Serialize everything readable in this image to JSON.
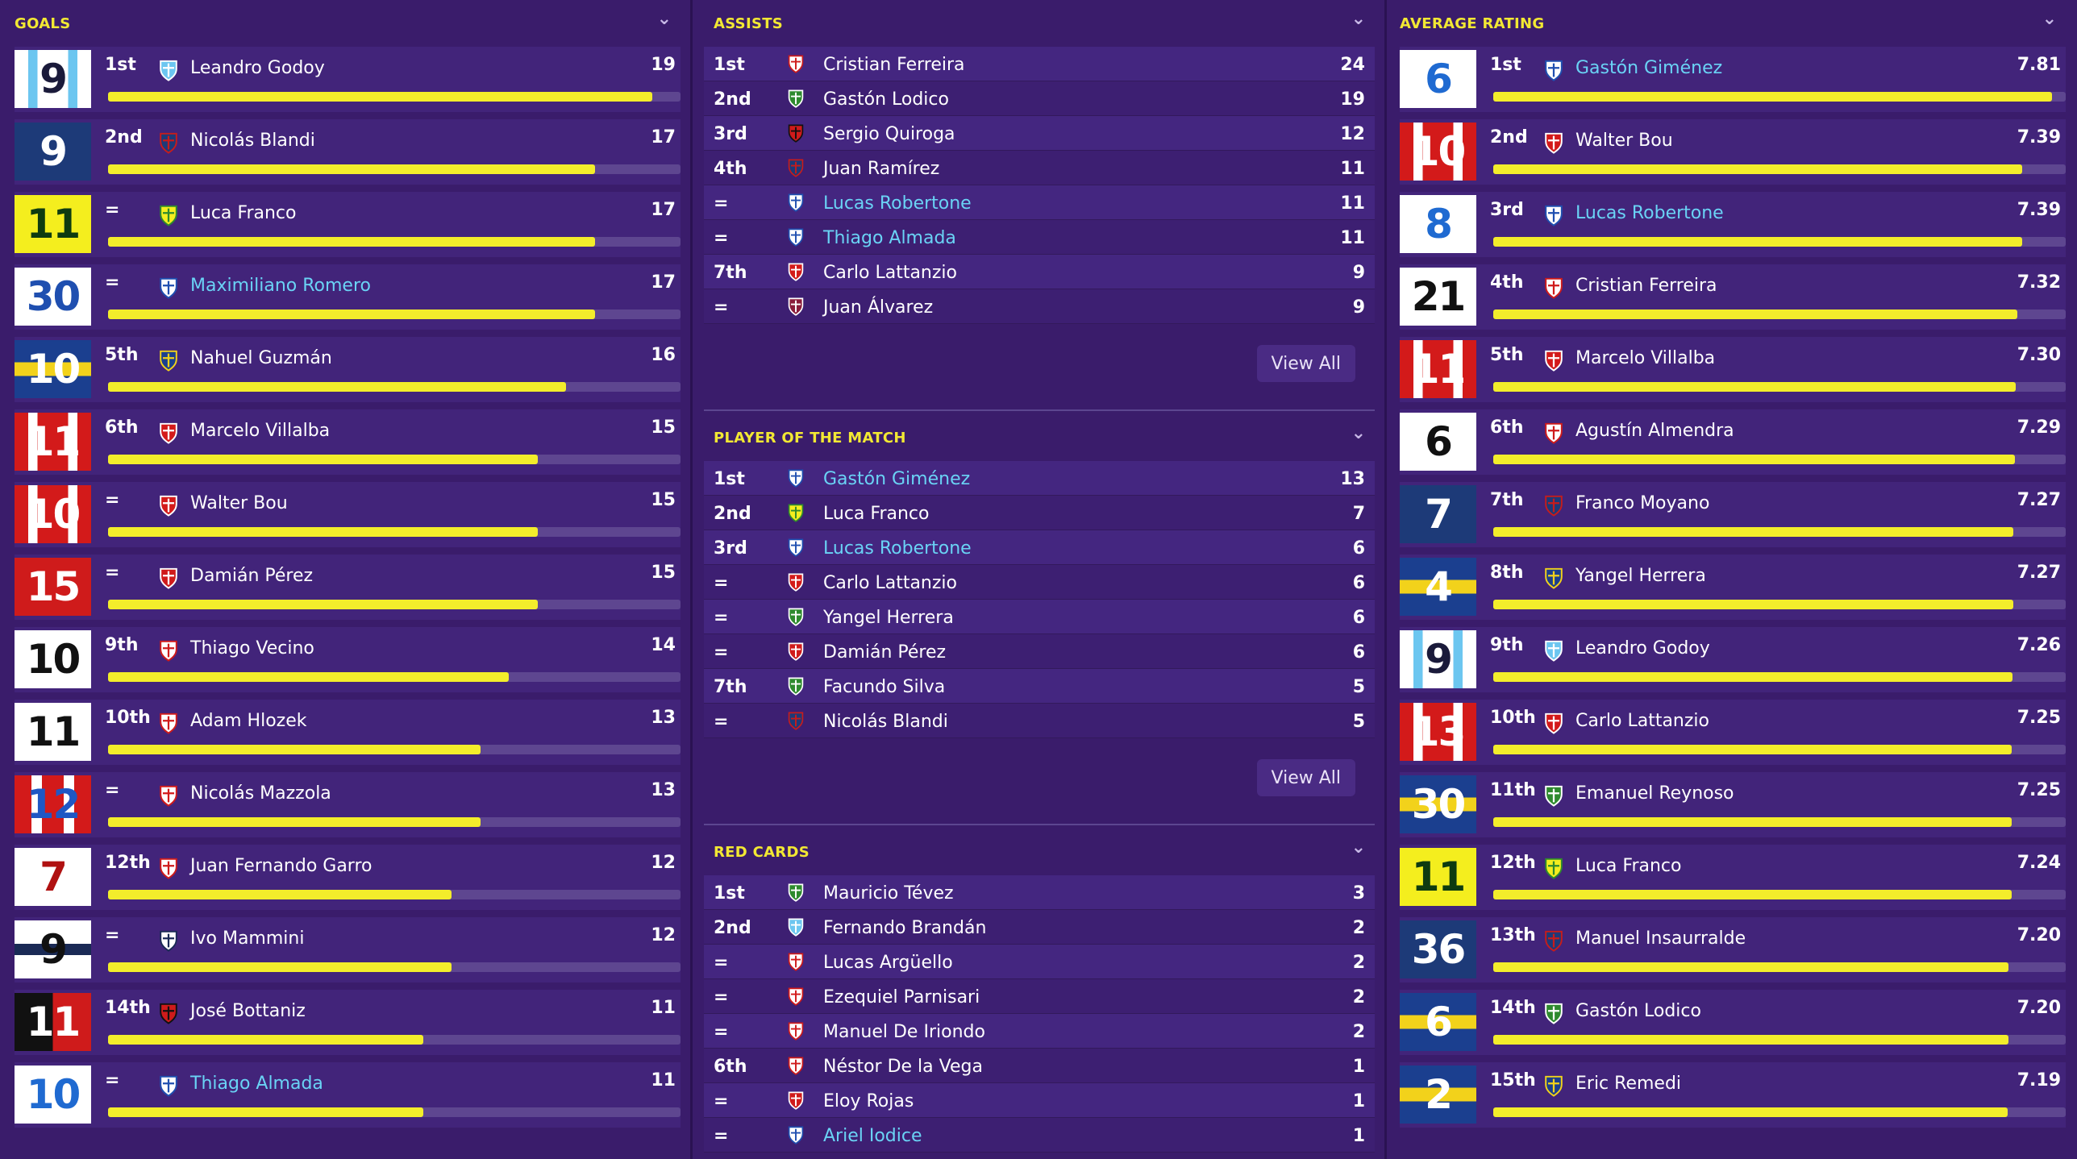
{
  "colors": {
    "background": "#3a1c6b",
    "header_yellow": "#f2e833",
    "bar_fill": "#f3ed2b",
    "bar_track": "#5e4690",
    "link_blue": "#6ad3f5"
  },
  "goals": {
    "title": "GOALS",
    "max": 20,
    "rows": [
      {
        "kit": "9",
        "kit_style": "racing",
        "rank": "1st",
        "crest": "racing-crest",
        "name": "Leandro Godoy",
        "value": "19",
        "num": 19,
        "link": false
      },
      {
        "kit": "9",
        "kit_style": "sanlorenzo",
        "rank": "2nd",
        "crest": "sanlorenzo-crest",
        "name": "Nicolás Blandi",
        "value": "17",
        "num": 17,
        "link": false
      },
      {
        "kit": "11",
        "kit_style": "defensa",
        "rank": "=",
        "crest": "defensa-crest",
        "name": "Luca Franco",
        "value": "17",
        "num": 17,
        "link": false
      },
      {
        "kit": "30",
        "kit_style": "velez",
        "rank": "=",
        "crest": "velez-crest",
        "name": "Maximiliano Romero",
        "value": "17",
        "num": 17,
        "link": true
      },
      {
        "kit": "10",
        "kit_style": "boca",
        "rank": "5th",
        "crest": "boca-crest",
        "name": "Nahuel Guzmán",
        "value": "16",
        "num": 16,
        "link": false
      },
      {
        "kit": "11",
        "kit_style": "union",
        "rank": "6th",
        "crest": "union-crest",
        "name": "Marcelo Villalba",
        "value": "15",
        "num": 15,
        "link": false
      },
      {
        "kit": "10",
        "kit_style": "union",
        "rank": "=",
        "crest": "union-crest",
        "name": "Walter Bou",
        "value": "15",
        "num": 15,
        "link": false
      },
      {
        "kit": "15",
        "kit_style": "independiente",
        "rank": "=",
        "crest": "independiente-crest",
        "name": "Damián Pérez",
        "value": "15",
        "num": 15,
        "link": false
      },
      {
        "kit": "10",
        "kit_style": "river",
        "rank": "9th",
        "crest": "river-crest",
        "name": "Thiago Vecino",
        "value": "14",
        "num": 14,
        "link": false
      },
      {
        "kit": "11",
        "kit_style": "white",
        "rank": "10th",
        "crest": "river-crest",
        "name": "Adam Hlozek",
        "value": "13",
        "num": 13,
        "link": false
      },
      {
        "kit": "12",
        "kit_style": "unionstripe",
        "rank": "=",
        "crest": "unionsf-crest",
        "name": "Nicolás Mazzola",
        "value": "13",
        "num": 13,
        "link": false
      },
      {
        "kit": "7",
        "kit_style": "huracan",
        "rank": "12th",
        "crest": "huracan-crest",
        "name": "Juan Fernando Garro",
        "value": "12",
        "num": 12,
        "link": false
      },
      {
        "kit": "9",
        "kit_style": "gimnasia",
        "rank": "=",
        "crest": "gimnasia-crest",
        "name": "Ivo Mammini",
        "value": "12",
        "num": 12,
        "link": false
      },
      {
        "kit": "11",
        "kit_style": "newells",
        "rank": "14th",
        "crest": "newells-crest",
        "name": "José Bottaniz",
        "value": "11",
        "num": 11,
        "link": false
      },
      {
        "kit": "10",
        "kit_style": "velezw",
        "rank": "=",
        "crest": "velez-crest",
        "name": "Thiago Almada",
        "value": "11",
        "num": 11,
        "link": true
      }
    ]
  },
  "assists": {
    "title": "ASSISTS",
    "view_all": "View All",
    "rows": [
      {
        "rank": "1st",
        "crest": "river-crest",
        "name": "Cristian Ferreira",
        "value": "24",
        "link": false
      },
      {
        "rank": "2nd",
        "crest": "banfield-crest",
        "name": "Gastón Lodico",
        "value": "19",
        "link": false
      },
      {
        "rank": "3rd",
        "crest": "newells-crest",
        "name": "Sergio Quiroga",
        "value": "12",
        "link": false
      },
      {
        "rank": "4th",
        "crest": "sanlorenzo-crest",
        "name": "Juan Ramírez",
        "value": "11",
        "link": false
      },
      {
        "rank": "=",
        "crest": "velez-crest",
        "name": "Lucas Robertone",
        "value": "11",
        "link": true
      },
      {
        "rank": "=",
        "crest": "velez-crest",
        "name": "Thiago Almada",
        "value": "11",
        "link": true
      },
      {
        "rank": "7th",
        "crest": "union-crest",
        "name": "Carlo Lattanzio",
        "value": "9",
        "link": false
      },
      {
        "rank": "=",
        "crest": "lanus-crest",
        "name": "Juan Álvarez",
        "value": "9",
        "link": false
      }
    ]
  },
  "potm": {
    "title": "PLAYER OF THE MATCH",
    "view_all": "View All",
    "rows": [
      {
        "rank": "1st",
        "crest": "velez-crest",
        "name": "Gastón Giménez",
        "value": "13",
        "link": true
      },
      {
        "rank": "2nd",
        "crest": "defensa-crest",
        "name": "Luca Franco",
        "value": "7",
        "link": false
      },
      {
        "rank": "3rd",
        "crest": "velez-crest",
        "name": "Lucas Robertone",
        "value": "6",
        "link": true
      },
      {
        "rank": "=",
        "crest": "union-crest",
        "name": "Carlo Lattanzio",
        "value": "6",
        "link": false
      },
      {
        "rank": "=",
        "crest": "banfield-crest",
        "name": "Yangel Herrera",
        "value": "6",
        "link": false
      },
      {
        "rank": "=",
        "crest": "independiente-crest",
        "name": "Damián Pérez",
        "value": "6",
        "link": false
      },
      {
        "rank": "7th",
        "crest": "sarmiento-crest",
        "name": "Facundo Silva",
        "value": "5",
        "link": false
      },
      {
        "rank": "=",
        "crest": "sanlorenzo-crest",
        "name": "Nicolás Blandi",
        "value": "5",
        "link": false
      }
    ]
  },
  "red_cards": {
    "title": "RED CARDS",
    "rows": [
      {
        "rank": "1st",
        "crest": "sarmiento-crest",
        "name": "Mauricio Tévez",
        "value": "3",
        "link": false
      },
      {
        "rank": "2nd",
        "crest": "belgrano-crest",
        "name": "Fernando Brandán",
        "value": "2",
        "link": false
      },
      {
        "rank": "=",
        "crest": "estudiantes-crest",
        "name": "Lucas Argüello",
        "value": "2",
        "link": false
      },
      {
        "rank": "=",
        "crest": "unionsf-crest",
        "name": "Ezequiel Parnisari",
        "value": "2",
        "link": false
      },
      {
        "rank": "=",
        "crest": "estudiantes-crest",
        "name": "Manuel De Iriondo",
        "value": "2",
        "link": false
      },
      {
        "rank": "6th",
        "crest": "river-crest",
        "name": "Néstor De la Vega",
        "value": "1",
        "link": false
      },
      {
        "rank": "=",
        "crest": "independiente-crest",
        "name": "Eloy Rojas",
        "value": "1",
        "link": false
      },
      {
        "rank": "=",
        "crest": "velez-crest",
        "name": "Ariel Iodice",
        "value": "1",
        "link": true
      }
    ]
  },
  "rating": {
    "title": "AVERAGE RATING",
    "max": 8.0,
    "rows": [
      {
        "kit": "6",
        "kit_style": "velezw",
        "rank": "1st",
        "crest": "velez-crest",
        "name": "Gastón Giménez",
        "value": "7.81",
        "num": 7.81,
        "link": true
      },
      {
        "kit": "10",
        "kit_style": "union",
        "rank": "2nd",
        "crest": "union-crest",
        "name": "Walter Bou",
        "value": "7.39",
        "num": 7.39,
        "link": false
      },
      {
        "kit": "8",
        "kit_style": "velezw",
        "rank": "3rd",
        "crest": "velez-crest",
        "name": "Lucas Robertone",
        "value": "7.39",
        "num": 7.39,
        "link": true
      },
      {
        "kit": "21",
        "kit_style": "white",
        "rank": "4th",
        "crest": "river-crest",
        "name": "Cristian Ferreira",
        "value": "7.32",
        "num": 7.32,
        "link": false
      },
      {
        "kit": "11",
        "kit_style": "union",
        "rank": "5th",
        "crest": "union-crest",
        "name": "Marcelo Villalba",
        "value": "7.30",
        "num": 7.3,
        "link": false
      },
      {
        "kit": "6",
        "kit_style": "white",
        "rank": "6th",
        "crest": "river-crest",
        "name": "Agustín Almendra",
        "value": "7.29",
        "num": 7.29,
        "link": false
      },
      {
        "kit": "7",
        "kit_style": "sanlorenzo",
        "rank": "7th",
        "crest": "sanlorenzo-crest",
        "name": "Franco Moyano",
        "value": "7.27",
        "num": 7.27,
        "link": false
      },
      {
        "kit": "4",
        "kit_style": "boca",
        "rank": "8th",
        "crest": "boca-crest",
        "name": "Yangel Herrera",
        "value": "7.27",
        "num": 7.27,
        "link": false
      },
      {
        "kit": "9",
        "kit_style": "racing",
        "rank": "9th",
        "crest": "racing-crest",
        "name": "Leandro Godoy",
        "value": "7.26",
        "num": 7.26,
        "link": false
      },
      {
        "kit": "13",
        "kit_style": "union",
        "rank": "10th",
        "crest": "union-crest",
        "name": "Carlo Lattanzio",
        "value": "7.25",
        "num": 7.25,
        "link": false
      },
      {
        "kit": "30",
        "kit_style": "boca",
        "rank": "11th",
        "crest": "banfield-crest",
        "name": "Emanuel Reynoso",
        "value": "7.25",
        "num": 7.25,
        "link": false
      },
      {
        "kit": "11",
        "kit_style": "defensa",
        "rank": "12th",
        "crest": "defensa-crest",
        "name": "Luca Franco",
        "value": "7.24",
        "num": 7.24,
        "link": false
      },
      {
        "kit": "36",
        "kit_style": "sanlorenzo",
        "rank": "13th",
        "crest": "sanlorenzo-crest",
        "name": "Manuel Insaurralde",
        "value": "7.20",
        "num": 7.2,
        "link": false
      },
      {
        "kit": "6",
        "kit_style": "boca",
        "rank": "14th",
        "crest": "banfield-crest",
        "name": "Gastón Lodico",
        "value": "7.20",
        "num": 7.2,
        "link": false
      },
      {
        "kit": "2",
        "kit_style": "boca",
        "rank": "15th",
        "crest": "boca-crest",
        "name": "Eric Remedi",
        "value": "7.19",
        "num": 7.19,
        "link": false
      }
    ]
  }
}
